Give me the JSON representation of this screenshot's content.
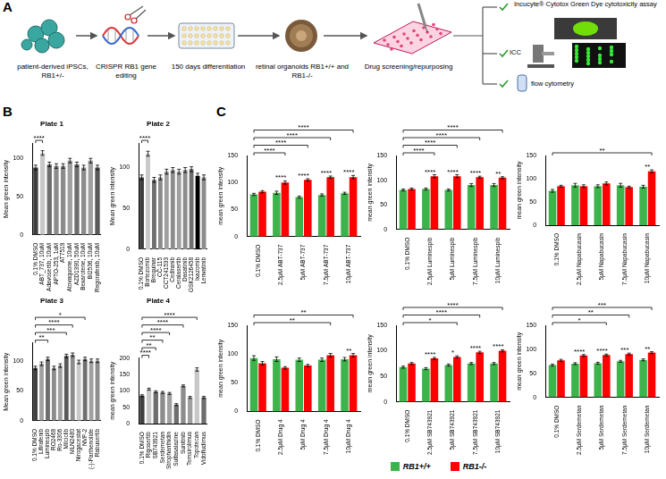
{
  "panel_letters": [
    "A",
    "B",
    "C"
  ],
  "diagram": {
    "panel": "A",
    "steps": [
      "patient-derived iPSCs, RB1+/-",
      "CRISPR RB1 gene editing",
      "150 days differentiation",
      "retinal organoids RB1+/+ and RB1-/-",
      "Drug screening/repurposing"
    ],
    "assays": [
      "Incucyte® Cytotox Green Dye cytotoxicity assay",
      "ICC",
      "flow cytometry"
    ]
  },
  "chart_data": [
    {
      "panel": "B",
      "type": "bar",
      "title": "Plate 1",
      "y_label": "Mean green intensity",
      "grid": false,
      "categories": [
        "0.1% DMSO",
        "ABT_737, 10uM",
        "Adavosertib, 10uM",
        "APTO-253, 1uM",
        "AT7519",
        "Atovaquone, 10uM",
        "AZD1390, 50uM",
        "Bexarotene, 10uM",
        "BI2536, 10uM",
        "Regorafenib, 10uM"
      ],
      "values": [
        88,
        107,
        92,
        90,
        90,
        97,
        92,
        88,
        97,
        88
      ],
      "errors": [
        3,
        3,
        3,
        3,
        3,
        3,
        3,
        3,
        3,
        3
      ],
      "colors": [
        "#404040",
        "#c8c8c8",
        "#6e6e6e",
        "#8c8c8c",
        "#8c8c8c",
        "#a0a0a0",
        "#6e6e6e",
        "#8c8c8c",
        "#a0a0a0",
        "#595959"
      ],
      "ylim": [
        0,
        120
      ],
      "yticks": [
        0,
        50,
        100
      ],
      "brackets": [
        {
          "from": "0.1% DMSO",
          "to": "ABT_737, 10uM",
          "label": "****"
        }
      ]
    },
    {
      "panel": "B",
      "type": "bar",
      "title": "Plate 2",
      "y_label": "Mean green intensity",
      "grid": false,
      "categories": [
        "0.1% DMSO",
        "Bortezomib",
        "Brequinar",
        "CC-115",
        "CCT241533",
        "Cediranib",
        "Ceralasertib",
        "Dasatinib",
        "GSK2126458",
        "Ixazomib",
        "Lenvatinib"
      ],
      "values": [
        88,
        117,
        85,
        88,
        95,
        97,
        95,
        97,
        98,
        90,
        88
      ],
      "errors": [
        3,
        3,
        3,
        3,
        3,
        3,
        3,
        3,
        3,
        3,
        3
      ],
      "colors": [
        "#404040",
        "#c8c8c8",
        "#6e6e6e",
        "#8c8c8c",
        "#a0a0a0",
        "#8c8c8c",
        "#a0a0a0",
        "#8c8c8c",
        "#6e6e6e",
        "#000000",
        "#8c8c8c"
      ],
      "ylim": [
        0,
        130
      ],
      "yticks": [
        0,
        50,
        100
      ],
      "brackets": [
        {
          "from": "0.1% DMSO",
          "to": "Bortezomib",
          "label": "****"
        }
      ]
    },
    {
      "panel": "B",
      "type": "bar",
      "title": "Plate 3",
      "y_label": "Mean green intensity",
      "grid": false,
      "categories": [
        "0.1% DMSO",
        "Lifirafenib",
        "Luminespib",
        "RO2468",
        "Ro-3306",
        "Milciclib",
        "MLN2480",
        "Nirogacestat",
        "NVP-2",
        "(-)-Parthenolide",
        "Rabusertib"
      ],
      "values": [
        88,
        95,
        103,
        88,
        92,
        108,
        110,
        98,
        103,
        100,
        100
      ],
      "errors": [
        3,
        3,
        3,
        3,
        3,
        3,
        3,
        3,
        3,
        3,
        3
      ],
      "colors": [
        "#404040",
        "#a0a0a0",
        "#6e6e6e",
        "#8c8c8c",
        "#a0a0a0",
        "#595959",
        "#8c8c8c",
        "#c8c8c8",
        "#6e6e6e",
        "#a0a0a0",
        "#8c8c8c"
      ],
      "ylim": [
        0,
        130
      ],
      "yticks": [
        0,
        50,
        100
      ],
      "brackets": [
        {
          "from": "0.1% DMSO",
          "to": "Luminespib",
          "label": "**"
        },
        {
          "from": "0.1% DMSO",
          "to": "Milciclib",
          "label": "***"
        },
        {
          "from": "0.1% DMSO",
          "to": "MLN2480",
          "label": "****"
        },
        {
          "from": "0.1% DMSO",
          "to": "NVP-2",
          "label": "*"
        }
      ]
    },
    {
      "panel": "B",
      "type": "bar",
      "title": "Plate 4",
      "y_label": "mean green intensity",
      "grid": false,
      "categories": [
        "0.1% DMSO",
        "Rigosertib",
        "SB743921",
        "Serdemetan",
        "Strophanthidin",
        "Sulfasalazine",
        "Sunitinib",
        "Temsirolimus",
        "Topotecan",
        "Vidofludimus"
      ],
      "values": [
        85,
        105,
        97,
        95,
        92,
        58,
        115,
        80,
        165,
        80
      ],
      "errors": [
        3,
        3,
        3,
        3,
        3,
        3,
        3,
        3,
        5,
        3
      ],
      "colors": [
        "#404040",
        "#c8c8c8",
        "#6e6e6e",
        "#8c8c8c",
        "#a0a0a0",
        "#6e6e6e",
        "#8c8c8c",
        "#a0a0a0",
        "#c8c8c8",
        "#6e6e6e"
      ],
      "ylim": [
        0,
        200
      ],
      "yticks": [
        0,
        50,
        100,
        150,
        200
      ],
      "brackets": [
        {
          "from": "0.1% DMSO",
          "to": "Rigosertib",
          "label": "****"
        },
        {
          "from": "0.1% DMSO",
          "to": "SB743921",
          "label": "**"
        },
        {
          "from": "0.1% DMSO",
          "to": "Serdemetan",
          "label": "**"
        },
        {
          "from": "0.1% DMSO",
          "to": "Strophanthidin",
          "label": "****"
        },
        {
          "from": "0.1% DMSO",
          "to": "Sunitinib",
          "label": "****"
        },
        {
          "from": "0.1% DMSO",
          "to": "Topotecan",
          "label": "****"
        }
      ]
    },
    {
      "panel": "C",
      "type": "bar",
      "y_label": "mean green intensity",
      "grid": false,
      "legend": "bottom",
      "categories": [
        "0.1% DMSO",
        "2.5µM ABT-737",
        "5µM ABT-737",
        "7.5µM ABT-737",
        "10µM ABT-737"
      ],
      "series": [
        {
          "name": "RB1+/+",
          "color": "#3cb44b",
          "values": [
            78,
            81,
            73,
            77,
            80
          ],
          "errors": [
            2,
            3,
            2,
            2,
            2
          ]
        },
        {
          "name": "RB1-/-",
          "color": "#ff0000",
          "values": [
            83,
            100,
            105,
            110,
            110
          ],
          "errors": [
            2,
            3,
            2,
            2,
            3
          ]
        }
      ],
      "ylim": [
        0,
        150
      ],
      "yticks": [
        0,
        50,
        100,
        150
      ],
      "pair_stars": [
        null,
        "****",
        "****",
        "****",
        "****"
      ],
      "brackets": [
        {
          "from": "0.1% DMSO",
          "from_series": "RB1+/+",
          "to": "2.5µM ABT-737",
          "to_series": "RB1-/-",
          "label": "****"
        },
        {
          "from": "0.1% DMSO",
          "from_series": "RB1+/+",
          "to": "5µM ABT-737",
          "to_series": "RB1-/-",
          "label": "****"
        },
        {
          "from": "0.1% DMSO",
          "from_series": "RB1+/+",
          "to": "7.5µM ABT-737",
          "to_series": "RB1-/-",
          "label": "****"
        },
        {
          "from": "0.1% DMSO",
          "from_series": "RB1+/+",
          "to": "10µM ABT-737",
          "to_series": "RB1-/-",
          "label": "****"
        }
      ]
    },
    {
      "panel": "C",
      "type": "bar",
      "y_label": "mean green intensity",
      "grid": false,
      "legend": "bottom",
      "categories": [
        "0.1% DMSO",
        "2.5µM Luminespib",
        "5µM Luminespib",
        "7.5µM Luminespib",
        "10µM Luminespib"
      ],
      "series": [
        {
          "name": "RB1+/+",
          "color": "#3cb44b",
          "values": [
            80,
            82,
            80,
            90,
            90
          ],
          "errors": [
            2,
            2,
            2,
            3,
            3
          ]
        },
        {
          "name": "RB1-/-",
          "color": "#ff0000",
          "values": [
            82,
            108,
            108,
            106,
            105
          ],
          "errors": [
            2,
            3,
            3,
            2,
            2
          ]
        }
      ],
      "ylim": [
        0,
        150
      ],
      "yticks": [
        0,
        50,
        100,
        150
      ],
      "pair_stars": [
        null,
        "****",
        "****",
        "****",
        "**"
      ],
      "brackets": [
        {
          "from": "0.1% DMSO",
          "from_series": "RB1+/+",
          "to": "2.5µM Luminespib",
          "to_series": "RB1-/-",
          "label": "****"
        },
        {
          "from": "0.1% DMSO",
          "from_series": "RB1+/+",
          "to": "5µM Luminespib",
          "to_series": "RB1-/-",
          "label": "****"
        },
        {
          "from": "0.1% DMSO",
          "from_series": "RB1+/+",
          "to": "7.5µM Luminespib",
          "to_series": "RB1-/-",
          "label": "****"
        },
        {
          "from": "0.1% DMSO",
          "from_series": "RB1+/+",
          "to": "10µM Luminespib",
          "to_series": "RB1-/-",
          "label": "****"
        }
      ]
    },
    {
      "panel": "C",
      "type": "bar",
      "y_label": "mean green intensity",
      "grid": false,
      "legend": "bottom",
      "categories": [
        "0.1% DMSO",
        "2.5µM Napabucasin",
        "5µM Napabucasin",
        "7.5µM Napabucasin",
        "10µM Napabucasin"
      ],
      "series": [
        {
          "name": "RB1+/+",
          "color": "#3cb44b",
          "values": [
            74,
            86,
            84,
            86,
            83
          ],
          "errors": [
            3,
            4,
            3,
            4,
            3
          ]
        },
        {
          "name": "RB1-/-",
          "color": "#ff0000",
          "values": [
            84,
            84,
            90,
            82,
            116
          ],
          "errors": [
            2,
            3,
            3,
            2,
            3
          ]
        }
      ],
      "ylim": [
        0,
        150
      ],
      "yticks": [
        0,
        50,
        100,
        150
      ],
      "pair_stars": [
        null,
        null,
        null,
        null,
        "**"
      ],
      "brackets": [
        {
          "from": "0.1% DMSO",
          "from_series": "RB1+/+",
          "to": "10µM Napabucasin",
          "to_series": "RB1-/-",
          "label": "**"
        }
      ]
    },
    {
      "panel": "C",
      "type": "bar",
      "y_label": "mean green intensity",
      "grid": false,
      "legend": "bottom",
      "categories": [
        "0.1% DMSO",
        "2.5µM Drug 4",
        "5µM Drug 4",
        "7.5µM Drug 4",
        "10µM Drug 4"
      ],
      "series": [
        {
          "name": "RB1+/+",
          "color": "#3cb44b",
          "values": [
            93,
            91,
            90,
            90,
            91
          ],
          "errors": [
            4,
            4,
            3,
            3,
            3
          ]
        },
        {
          "name": "RB1-/-",
          "color": "#ff0000",
          "values": [
            84,
            76,
            80,
            98,
            98
          ],
          "errors": [
            3,
            2,
            2,
            3,
            3
          ]
        }
      ],
      "ylim": [
        0,
        150
      ],
      "yticks": [
        0,
        50,
        100,
        150
      ],
      "pair_stars": [
        null,
        null,
        null,
        null,
        "**"
      ],
      "brackets": [
        {
          "from": "0.1% DMSO",
          "from_series": "RB1+/+",
          "to": "7.5µM Drug 4",
          "to_series": "RB1-/-",
          "label": "**"
        },
        {
          "from": "0.1% DMSO",
          "from_series": "RB1+/+",
          "to": "10µM Drug 4",
          "to_series": "RB1-/-",
          "label": "**"
        }
      ]
    },
    {
      "panel": "C",
      "type": "bar",
      "y_label": "mean green intensity",
      "grid": false,
      "legend": "bottom",
      "categories": [
        "0.1% DMSO",
        "2.5µM SB743921",
        "5µM SB743921",
        "7.5µM SB743921",
        "10µM SB743921"
      ],
      "series": [
        {
          "name": "RB1+/+",
          "color": "#3cb44b",
          "values": [
            68,
            65,
            72,
            75,
            75
          ],
          "errors": [
            2,
            2,
            2,
            2,
            2
          ]
        },
        {
          "name": "RB1-/-",
          "color": "#ff0000",
          "values": [
            75,
            85,
            88,
            97,
            100
          ],
          "errors": [
            2,
            2,
            2,
            2,
            2
          ]
        }
      ],
      "ylim": [
        0,
        150
      ],
      "yticks": [
        0,
        50,
        100,
        150
      ],
      "pair_stars": [
        null,
        "****",
        "*",
        "****",
        "****"
      ],
      "brackets": [
        {
          "from": "0.1% DMSO",
          "from_series": "RB1+/+",
          "to": "5µM SB743921",
          "to_series": "RB1-/-",
          "label": "*"
        },
        {
          "from": "0.1% DMSO",
          "from_series": "RB1+/+",
          "to": "7.5µM SB743921",
          "to_series": "RB1-/-",
          "label": "****"
        },
        {
          "from": "0.1% DMSO",
          "from_series": "RB1+/+",
          "to": "10µM SB743921",
          "to_series": "RB1-/-",
          "label": "****"
        }
      ]
    },
    {
      "panel": "C",
      "type": "bar",
      "y_label": "mean green intensity",
      "grid": false,
      "legend": "bottom",
      "categories": [
        "0.1% DMSO",
        "2.5µM Serdemetan",
        "5µM Serdemetan",
        "7.5µM Serdemetan",
        "10µM Serdemetan"
      ],
      "series": [
        {
          "name": "RB1+/+",
          "color": "#3cb44b",
          "values": [
            67,
            70,
            71,
            75,
            78
          ],
          "errors": [
            2,
            2,
            2,
            2,
            2
          ]
        },
        {
          "name": "RB1-/-",
          "color": "#ff0000",
          "values": [
            77,
            87,
            88,
            90,
            93
          ],
          "errors": [
            2,
            2,
            2,
            2,
            2
          ]
        }
      ],
      "ylim": [
        0,
        150
      ],
      "yticks": [
        0,
        50,
        100,
        150
      ],
      "pair_stars": [
        null,
        "****",
        "****",
        "***",
        "**"
      ],
      "brackets": [
        {
          "from": "0.1% DMSO",
          "from_series": "RB1+/+",
          "to": "5µM Serdemetan",
          "to_series": "RB1-/-",
          "label": "*"
        },
        {
          "from": "0.1% DMSO",
          "from_series": "RB1+/+",
          "to": "7.5µM Serdemetan",
          "to_series": "RB1-/-",
          "label": "**"
        },
        {
          "from": "0.1% DMSO",
          "from_series": "RB1+/+",
          "to": "10µM Serdemetan",
          "to_series": "RB1-/-",
          "label": "***"
        }
      ]
    }
  ]
}
